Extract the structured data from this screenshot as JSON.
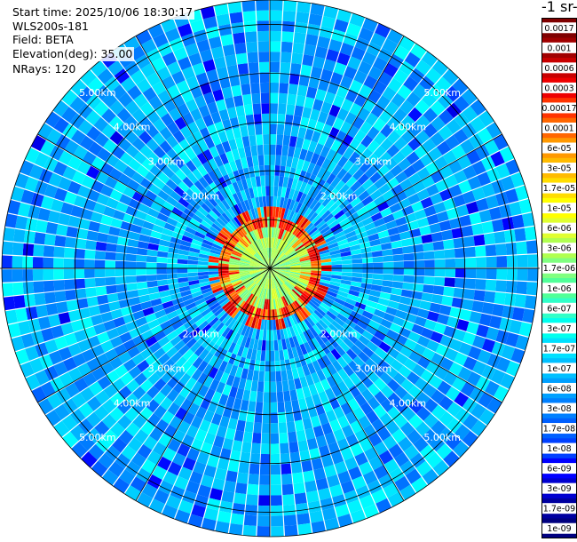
{
  "info": {
    "start_time": "Start time: 2025/10/06 18:30:17",
    "instrument": "WLS200s-181",
    "field": "Field: BETA",
    "elevation": "Elevation(deg): 35.00",
    "nrays": "NRays: 120"
  },
  "colorbar": {
    "unit_label": "-1 sr-",
    "ticks": [
      "0.0017",
      "0.001",
      "0.0006",
      "0.0003",
      "0.00017",
      "0.0001",
      "6e-05",
      "3e-05",
      "1.7e-05",
      "1e-05",
      "6e-06",
      "3e-06",
      "1.7e-06",
      "1e-06",
      "6e-07",
      "3e-07",
      "1.7e-07",
      "1e-07",
      "6e-08",
      "3e-08",
      "1.7e-08",
      "1e-08",
      "6e-09",
      "3e-09",
      "1.7e-09",
      "1e-09"
    ],
    "colors": [
      "#7f0000",
      "#a00000",
      "#c80000",
      "#ee0000",
      "#ff3300",
      "#ff6600",
      "#ff9900",
      "#ffbb00",
      "#ffdd00",
      "#ffff00",
      "#e0ff30",
      "#b0ff50",
      "#80ff80",
      "#50ff98",
      "#30ffc8",
      "#00ffee",
      "#00e0ff",
      "#00c0ff",
      "#00a0ff",
      "#0080ff",
      "#0060ff",
      "#0040ff",
      "#0000ff",
      "#0000d0",
      "#0000a0",
      "#000080"
    ]
  },
  "chart_data": {
    "type": "polar_ppi",
    "field": "BETA",
    "elevation_deg": 35.0,
    "n_rays": 120,
    "range_rings_km": [
      1,
      2,
      3,
      4,
      5
    ],
    "ring_labels": [
      "2.00km",
      "3.00km",
      "4.00km",
      "5.00km"
    ],
    "max_range_km": 5.5,
    "colorscale": "jet, log",
    "value_range": [
      1e-09,
      0.0017
    ],
    "pattern": [
      {
        "range_km": [
          0,
          0.85
        ],
        "level": 0.6,
        "desc": "cyan/green core"
      },
      {
        "range_km": [
          0.8,
          1.2
        ],
        "level": 0.35,
        "desc": "orange-red ring"
      },
      {
        "range_km": [
          1.2,
          5.5
        ],
        "level": 0.85,
        "desc": "blue background"
      }
    ]
  }
}
